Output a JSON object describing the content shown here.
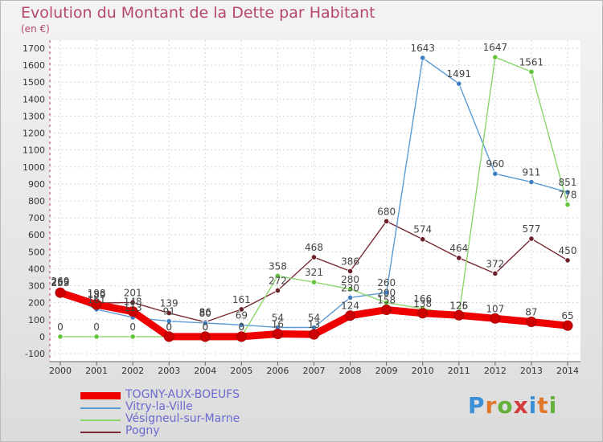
{
  "title": "Evolution du Montant de la Dette par Habitant",
  "subtitle": "(en €)",
  "logo": {
    "text": "Proxiti",
    "colors": [
      "#3a8fd6",
      "#e0782a",
      "#63b13a",
      "#d43c3c",
      "#3a8fd6",
      "#e0782a",
      "#63b13a"
    ]
  },
  "chart_data": {
    "type": "line",
    "x": [
      2000,
      2001,
      2002,
      2003,
      2004,
      2005,
      2006,
      2007,
      2008,
      2009,
      2010,
      2011,
      2012,
      2013,
      2014
    ],
    "ylim": [
      -100,
      1700
    ],
    "yticks": [
      -100,
      0,
      100,
      200,
      300,
      400,
      500,
      600,
      700,
      800,
      900,
      1000,
      1100,
      1200,
      1300,
      1400,
      1500,
      1600,
      1700
    ],
    "grid": true,
    "legend_position": "bottom-left",
    "series": [
      {
        "name": "TOGNY-AUX-BOEUFS",
        "color": "#ee0000",
        "marker": "#cc0000",
        "values": [
          259,
          189,
          148,
          0,
          0,
          0,
          16,
          13,
          124,
          158,
          138,
          126,
          107,
          87,
          65
        ]
      },
      {
        "name": "Vitry-la-Ville",
        "color": "#5a9bd5",
        "marker": "#3f7fc0",
        "values": [
          262,
          161,
          113,
          91,
          80,
          69,
          54,
          54,
          230,
          260,
          1643,
          1491,
          960,
          911,
          851
        ]
      },
      {
        "name": "Vésigneul-sur-Marne",
        "color": "#8ad66a",
        "marker": "#62c43a",
        "values": [
          0,
          0,
          0,
          0,
          0,
          0,
          358,
          321,
          280,
          200,
          166,
          125,
          1647,
          1561,
          778
        ]
      },
      {
        "name": "Pogny",
        "color": "#7a2a32",
        "marker": "#6a1f28",
        "values": [
          269,
          198,
          201,
          139,
          86,
          161,
          272,
          468,
          386,
          680,
          574,
          464,
          372,
          577,
          450
        ]
      }
    ]
  }
}
